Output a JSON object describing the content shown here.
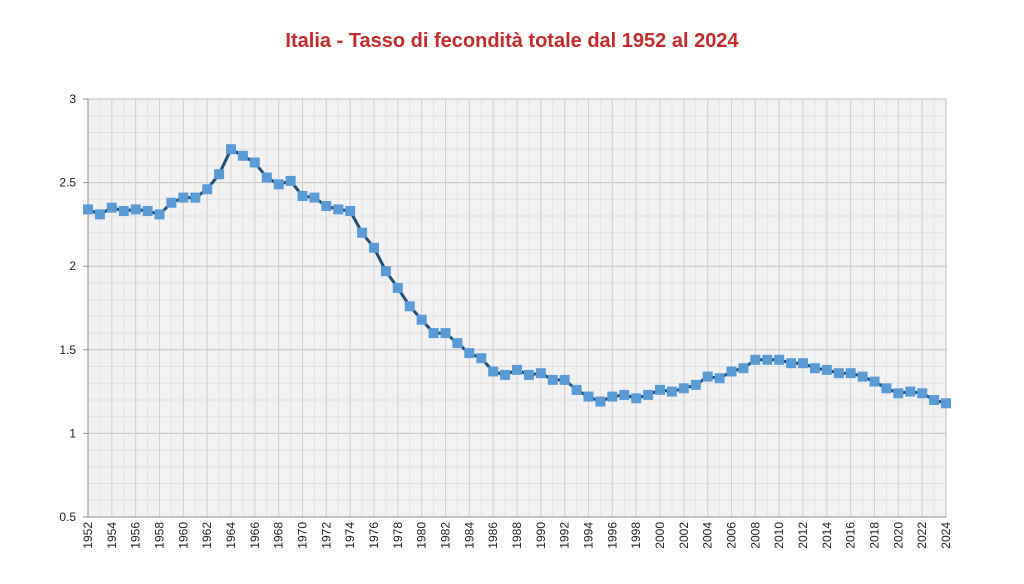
{
  "chart_data": {
    "type": "line",
    "title": "Italia - Tasso di fecondità totale dal 1952 al 2024",
    "xlabel": "",
    "ylabel": "",
    "ylim": [
      0.5,
      3
    ],
    "xlim": [
      1952,
      2024
    ],
    "yticks": [
      "0.5",
      "1",
      "1.5",
      "2",
      "2.5",
      "3"
    ],
    "xticks": [
      "1952",
      "1954",
      "1956",
      "1958",
      "1960",
      "1962",
      "1964",
      "1966",
      "1968",
      "1970",
      "1972",
      "1974",
      "1976",
      "1978",
      "1980",
      "1982",
      "1984",
      "1986",
      "1988",
      "1990",
      "1992",
      "1994",
      "1996",
      "1998",
      "2000",
      "2002",
      "2004",
      "2006",
      "2008",
      "2010",
      "2012",
      "2014",
      "2016",
      "2018",
      "2020",
      "2022",
      "2024"
    ],
    "grid": true,
    "legend": "none",
    "colors": {
      "title": "#c8282a",
      "line": "#1f4e79",
      "marker": "#5b9bd5",
      "plot_bg": "#f2f2f2",
      "grid": "#d9d9d9"
    },
    "series": [
      {
        "x": [
          1952,
          1953,
          1954,
          1955,
          1956,
          1957,
          1958,
          1959,
          1960,
          1961,
          1962,
          1963,
          1964,
          1965,
          1966,
          1967,
          1968,
          1969,
          1970,
          1971,
          1972,
          1973,
          1974,
          1975,
          1976,
          1977,
          1978,
          1979,
          1980,
          1981,
          1982,
          1983,
          1984,
          1985,
          1986,
          1987,
          1988,
          1989,
          1990,
          1991,
          1992,
          1993,
          1994,
          1995,
          1996,
          1997,
          1998,
          1999,
          2000,
          2001,
          2002,
          2003,
          2004,
          2005,
          2006,
          2007,
          2008,
          2009,
          2010,
          2011,
          2012,
          2013,
          2014,
          2015,
          2016,
          2017,
          2018,
          2019,
          2020,
          2021,
          2022,
          2023,
          2024
        ],
        "values": [
          2.34,
          2.31,
          2.35,
          2.33,
          2.34,
          2.33,
          2.31,
          2.38,
          2.41,
          2.41,
          2.46,
          2.55,
          2.7,
          2.66,
          2.62,
          2.53,
          2.49,
          2.51,
          2.42,
          2.41,
          2.36,
          2.34,
          2.33,
          2.2,
          2.11,
          1.97,
          1.87,
          1.76,
          1.68,
          1.6,
          1.6,
          1.54,
          1.48,
          1.45,
          1.37,
          1.35,
          1.38,
          1.35,
          1.36,
          1.32,
          1.32,
          1.26,
          1.22,
          1.19,
          1.22,
          1.23,
          1.21,
          1.23,
          1.26,
          1.25,
          1.27,
          1.29,
          1.34,
          1.33,
          1.37,
          1.39,
          1.44,
          1.44,
          1.44,
          1.42,
          1.42,
          1.39,
          1.38,
          1.36,
          1.36,
          1.34,
          1.31,
          1.27,
          1.24,
          1.25,
          1.24,
          1.2,
          1.18
        ]
      }
    ]
  }
}
